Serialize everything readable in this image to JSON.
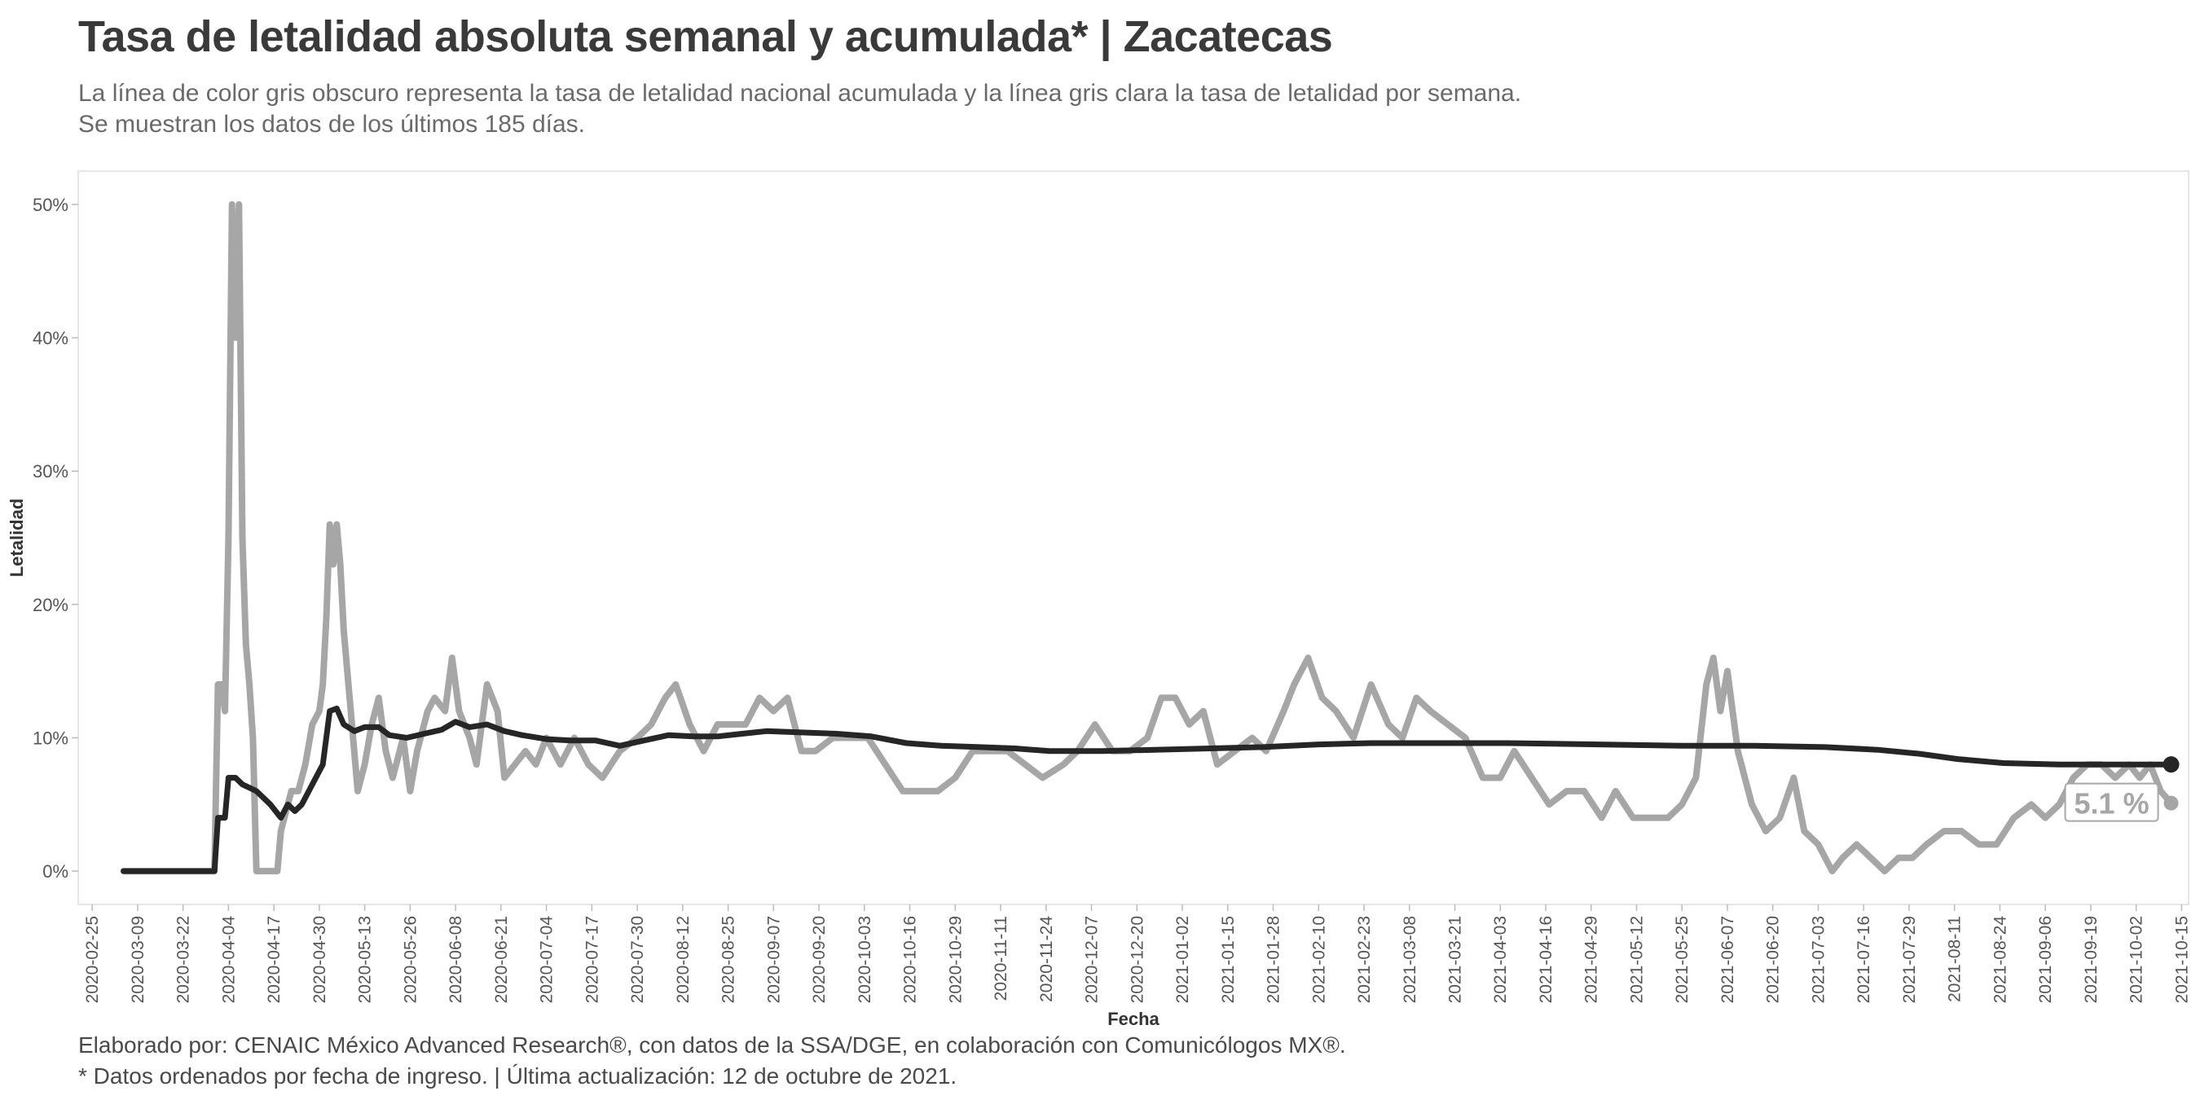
{
  "title": "Tasa de letalidad absoluta semanal y acumulada* | Zacatecas",
  "subtitle_lines": [
    "La línea de color gris obscuro representa la tasa de letalidad nacional acumulada y la línea gris clara la tasa de letalidad por semana.",
    "Se muestran los datos de los últimos 185 días."
  ],
  "caption_lines": [
    "Elaborado por: CENAIC México Advanced Research®, con datos de la SSA/DGE, en colaboración con Comunicólogos MX®.",
    "* Datos ordenados por fecha de ingreso. | Última actualización: 12 de octubre de 2021."
  ],
  "colors": {
    "weekly_line": "#a6a6a6",
    "cumulative_line": "#262626",
    "axis_text": "#555555",
    "panel_border": "#e6e6e6"
  },
  "chart_data": {
    "type": "line",
    "xlabel": "Fecha",
    "ylabel": "Letalidad",
    "x_ticks": [
      "2020-02-25",
      "2020-03-09",
      "2020-03-22",
      "2020-04-04",
      "2020-04-17",
      "2020-04-30",
      "2020-05-13",
      "2020-05-26",
      "2020-06-08",
      "2020-06-21",
      "2020-07-04",
      "2020-07-17",
      "2020-07-30",
      "2020-08-12",
      "2020-08-25",
      "2020-09-07",
      "2020-09-20",
      "2020-10-03",
      "2020-10-16",
      "2020-10-29",
      "2020-11-11",
      "2020-11-24",
      "2020-12-07",
      "2020-12-20",
      "2021-01-02",
      "2021-01-15",
      "2021-01-28",
      "2021-02-10",
      "2021-02-23",
      "2021-03-08",
      "2021-03-21",
      "2021-04-03",
      "2021-04-16",
      "2021-04-29",
      "2021-05-12",
      "2021-05-25",
      "2021-06-07",
      "2021-06-20",
      "2021-07-03",
      "2021-07-16",
      "2021-07-29",
      "2021-08-11",
      "2021-08-24",
      "2021-09-06",
      "2021-09-19",
      "2021-10-02",
      "2021-10-15"
    ],
    "y_ticks": [
      "0%",
      "10%",
      "20%",
      "30%",
      "40%",
      "50%"
    ],
    "xlim": [
      "2020-02-21",
      "2021-10-17"
    ],
    "ylim": [
      -2.5,
      52.5
    ],
    "grid": false,
    "end_label": "5.1 %",
    "series": [
      {
        "role": "weekly",
        "values": [
          [
            "2020-03-05",
            0
          ],
          [
            "2020-03-20",
            0
          ],
          [
            "2020-03-31",
            0
          ],
          [
            "2020-04-01",
            14
          ],
          [
            "2020-04-02",
            14
          ],
          [
            "2020-04-03",
            12
          ],
          [
            "2020-04-04",
            25
          ],
          [
            "2020-04-05",
            50
          ],
          [
            "2020-04-06",
            40
          ],
          [
            "2020-04-07",
            50
          ],
          [
            "2020-04-08",
            25
          ],
          [
            "2020-04-09",
            17
          ],
          [
            "2020-04-10",
            14
          ],
          [
            "2020-04-11",
            10
          ],
          [
            "2020-04-12",
            0
          ],
          [
            "2020-04-18",
            0
          ],
          [
            "2020-04-19",
            3
          ],
          [
            "2020-04-20",
            4
          ],
          [
            "2020-04-22",
            6
          ],
          [
            "2020-04-24",
            6
          ],
          [
            "2020-04-26",
            8
          ],
          [
            "2020-04-28",
            11
          ],
          [
            "2020-04-30",
            12
          ],
          [
            "2020-05-01",
            14
          ],
          [
            "2020-05-02",
            19
          ],
          [
            "2020-05-03",
            26
          ],
          [
            "2020-05-04",
            23
          ],
          [
            "2020-05-05",
            26
          ],
          [
            "2020-05-06",
            23
          ],
          [
            "2020-05-07",
            18
          ],
          [
            "2020-05-09",
            12
          ],
          [
            "2020-05-11",
            6
          ],
          [
            "2020-05-13",
            8
          ],
          [
            "2020-05-15",
            11
          ],
          [
            "2020-05-17",
            13
          ],
          [
            "2020-05-19",
            9
          ],
          [
            "2020-05-21",
            7
          ],
          [
            "2020-05-24",
            10
          ],
          [
            "2020-05-26",
            6
          ],
          [
            "2020-05-28",
            9
          ],
          [
            "2020-05-31",
            12
          ],
          [
            "2020-06-02",
            13
          ],
          [
            "2020-06-05",
            12
          ],
          [
            "2020-06-07",
            16
          ],
          [
            "2020-06-09",
            12
          ],
          [
            "2020-06-12",
            10
          ],
          [
            "2020-06-14",
            8
          ],
          [
            "2020-06-17",
            14
          ],
          [
            "2020-06-20",
            12
          ],
          [
            "2020-06-22",
            7
          ],
          [
            "2020-06-25",
            8
          ],
          [
            "2020-06-28",
            9
          ],
          [
            "2020-07-01",
            8
          ],
          [
            "2020-07-04",
            10
          ],
          [
            "2020-07-08",
            8
          ],
          [
            "2020-07-12",
            10
          ],
          [
            "2020-07-16",
            8
          ],
          [
            "2020-07-20",
            7
          ],
          [
            "2020-07-25",
            9
          ],
          [
            "2020-07-30",
            10
          ],
          [
            "2020-08-03",
            11
          ],
          [
            "2020-08-07",
            13
          ],
          [
            "2020-08-10",
            14
          ],
          [
            "2020-08-14",
            11
          ],
          [
            "2020-08-18",
            9
          ],
          [
            "2020-08-22",
            11
          ],
          [
            "2020-08-26",
            11
          ],
          [
            "2020-08-30",
            11
          ],
          [
            "2020-09-03",
            13
          ],
          [
            "2020-09-07",
            12
          ],
          [
            "2020-09-11",
            13
          ],
          [
            "2020-09-15",
            9
          ],
          [
            "2020-09-19",
            9
          ],
          [
            "2020-09-24",
            10
          ],
          [
            "2020-09-29",
            10
          ],
          [
            "2020-10-04",
            10
          ],
          [
            "2020-10-09",
            8
          ],
          [
            "2020-10-14",
            6
          ],
          [
            "2020-10-19",
            6
          ],
          [
            "2020-10-24",
            6
          ],
          [
            "2020-10-29",
            7
          ],
          [
            "2020-11-03",
            9
          ],
          [
            "2020-11-08",
            9
          ],
          [
            "2020-11-13",
            9
          ],
          [
            "2020-11-18",
            8
          ],
          [
            "2020-11-23",
            7
          ],
          [
            "2020-11-29",
            8
          ],
          [
            "2020-12-03",
            9
          ],
          [
            "2020-12-08",
            11
          ],
          [
            "2020-12-13",
            9
          ],
          [
            "2020-12-18",
            9
          ],
          [
            "2020-12-23",
            10
          ],
          [
            "2020-12-27",
            13
          ],
          [
            "2020-12-31",
            13
          ],
          [
            "2021-01-04",
            11
          ],
          [
            "2021-01-08",
            12
          ],
          [
            "2021-01-12",
            8
          ],
          [
            "2021-01-17",
            9
          ],
          [
            "2021-01-22",
            10
          ],
          [
            "2021-01-26",
            9
          ],
          [
            "2021-01-31",
            12
          ],
          [
            "2021-02-03",
            14
          ],
          [
            "2021-02-07",
            16
          ],
          [
            "2021-02-11",
            13
          ],
          [
            "2021-02-15",
            12
          ],
          [
            "2021-02-20",
            10
          ],
          [
            "2021-02-25",
            14
          ],
          [
            "2021-03-02",
            11
          ],
          [
            "2021-03-06",
            10
          ],
          [
            "2021-03-10",
            13
          ],
          [
            "2021-03-14",
            12
          ],
          [
            "2021-03-19",
            11
          ],
          [
            "2021-03-24",
            10
          ],
          [
            "2021-03-29",
            7
          ],
          [
            "2021-04-03",
            7
          ],
          [
            "2021-04-07",
            9
          ],
          [
            "2021-04-12",
            7
          ],
          [
            "2021-04-17",
            5
          ],
          [
            "2021-04-22",
            6
          ],
          [
            "2021-04-27",
            6
          ],
          [
            "2021-05-02",
            4
          ],
          [
            "2021-05-06",
            6
          ],
          [
            "2021-05-11",
            4
          ],
          [
            "2021-05-16",
            4
          ],
          [
            "2021-05-21",
            4
          ],
          [
            "2021-05-25",
            5
          ],
          [
            "2021-05-29",
            7
          ],
          [
            "2021-06-01",
            14
          ],
          [
            "2021-06-03",
            16
          ],
          [
            "2021-06-05",
            12
          ],
          [
            "2021-06-07",
            15
          ],
          [
            "2021-06-10",
            9
          ],
          [
            "2021-06-14",
            5
          ],
          [
            "2021-06-18",
            3
          ],
          [
            "2021-06-22",
            4
          ],
          [
            "2021-06-26",
            7
          ],
          [
            "2021-06-29",
            3
          ],
          [
            "2021-07-03",
            2
          ],
          [
            "2021-07-07",
            0
          ],
          [
            "2021-07-10",
            1
          ],
          [
            "2021-07-14",
            2
          ],
          [
            "2021-07-18",
            1
          ],
          [
            "2021-07-22",
            0
          ],
          [
            "2021-07-26",
            1
          ],
          [
            "2021-07-30",
            1
          ],
          [
            "2021-08-03",
            2
          ],
          [
            "2021-08-08",
            3
          ],
          [
            "2021-08-13",
            3
          ],
          [
            "2021-08-18",
            2
          ],
          [
            "2021-08-23",
            2
          ],
          [
            "2021-08-28",
            4
          ],
          [
            "2021-09-02",
            5
          ],
          [
            "2021-09-06",
            4
          ],
          [
            "2021-09-10",
            5
          ],
          [
            "2021-09-14",
            7
          ],
          [
            "2021-09-18",
            8
          ],
          [
            "2021-09-22",
            8
          ],
          [
            "2021-09-26",
            7
          ],
          [
            "2021-09-30",
            8
          ],
          [
            "2021-10-03",
            7
          ],
          [
            "2021-10-06",
            8
          ],
          [
            "2021-10-09",
            6
          ],
          [
            "2021-10-12",
            5.1
          ]
        ]
      },
      {
        "role": "cumulative",
        "values": [
          [
            "2020-03-05",
            0
          ],
          [
            "2020-03-20",
            0
          ],
          [
            "2020-03-31",
            0
          ],
          [
            "2020-04-01",
            4
          ],
          [
            "2020-04-03",
            4
          ],
          [
            "2020-04-04",
            7
          ],
          [
            "2020-04-06",
            7
          ],
          [
            "2020-04-08",
            6.5
          ],
          [
            "2020-04-12",
            6
          ],
          [
            "2020-04-16",
            5
          ],
          [
            "2020-04-19",
            4
          ],
          [
            "2020-04-21",
            5
          ],
          [
            "2020-04-23",
            4.5
          ],
          [
            "2020-04-25",
            5
          ],
          [
            "2020-04-27",
            6
          ],
          [
            "2020-04-29",
            7
          ],
          [
            "2020-05-01",
            8
          ],
          [
            "2020-05-03",
            12
          ],
          [
            "2020-05-05",
            12.2
          ],
          [
            "2020-05-07",
            11
          ],
          [
            "2020-05-10",
            10.5
          ],
          [
            "2020-05-13",
            10.8
          ],
          [
            "2020-05-17",
            10.8
          ],
          [
            "2020-05-20",
            10.2
          ],
          [
            "2020-05-25",
            10
          ],
          [
            "2020-05-30",
            10.3
          ],
          [
            "2020-06-04",
            10.6
          ],
          [
            "2020-06-08",
            11.2
          ],
          [
            "2020-06-12",
            10.8
          ],
          [
            "2020-06-17",
            11
          ],
          [
            "2020-06-22",
            10.5
          ],
          [
            "2020-06-27",
            10.2
          ],
          [
            "2020-07-04",
            9.9
          ],
          [
            "2020-07-11",
            9.8
          ],
          [
            "2020-07-18",
            9.8
          ],
          [
            "2020-07-25",
            9.4
          ],
          [
            "2020-08-01",
            9.8
          ],
          [
            "2020-08-08",
            10.2
          ],
          [
            "2020-08-15",
            10.1
          ],
          [
            "2020-08-22",
            10.1
          ],
          [
            "2020-08-29",
            10.3
          ],
          [
            "2020-09-05",
            10.5
          ],
          [
            "2020-09-15",
            10.4
          ],
          [
            "2020-09-25",
            10.3
          ],
          [
            "2020-10-05",
            10.1
          ],
          [
            "2020-10-15",
            9.6
          ],
          [
            "2020-10-25",
            9.4
          ],
          [
            "2020-11-05",
            9.3
          ],
          [
            "2020-11-15",
            9.2
          ],
          [
            "2020-11-25",
            9
          ],
          [
            "2020-12-10",
            9
          ],
          [
            "2020-12-25",
            9.1
          ],
          [
            "2021-01-10",
            9.2
          ],
          [
            "2021-01-25",
            9.3
          ],
          [
            "2021-02-10",
            9.5
          ],
          [
            "2021-02-25",
            9.6
          ],
          [
            "2021-03-15",
            9.6
          ],
          [
            "2021-04-05",
            9.6
          ],
          [
            "2021-05-01",
            9.5
          ],
          [
            "2021-05-25",
            9.4
          ],
          [
            "2021-06-15",
            9.4
          ],
          [
            "2021-07-05",
            9.3
          ],
          [
            "2021-07-20",
            9.1
          ],
          [
            "2021-08-01",
            8.8
          ],
          [
            "2021-08-12",
            8.4
          ],
          [
            "2021-08-25",
            8.1
          ],
          [
            "2021-09-10",
            8
          ],
          [
            "2021-09-25",
            8
          ],
          [
            "2021-10-12",
            8
          ]
        ]
      }
    ]
  }
}
